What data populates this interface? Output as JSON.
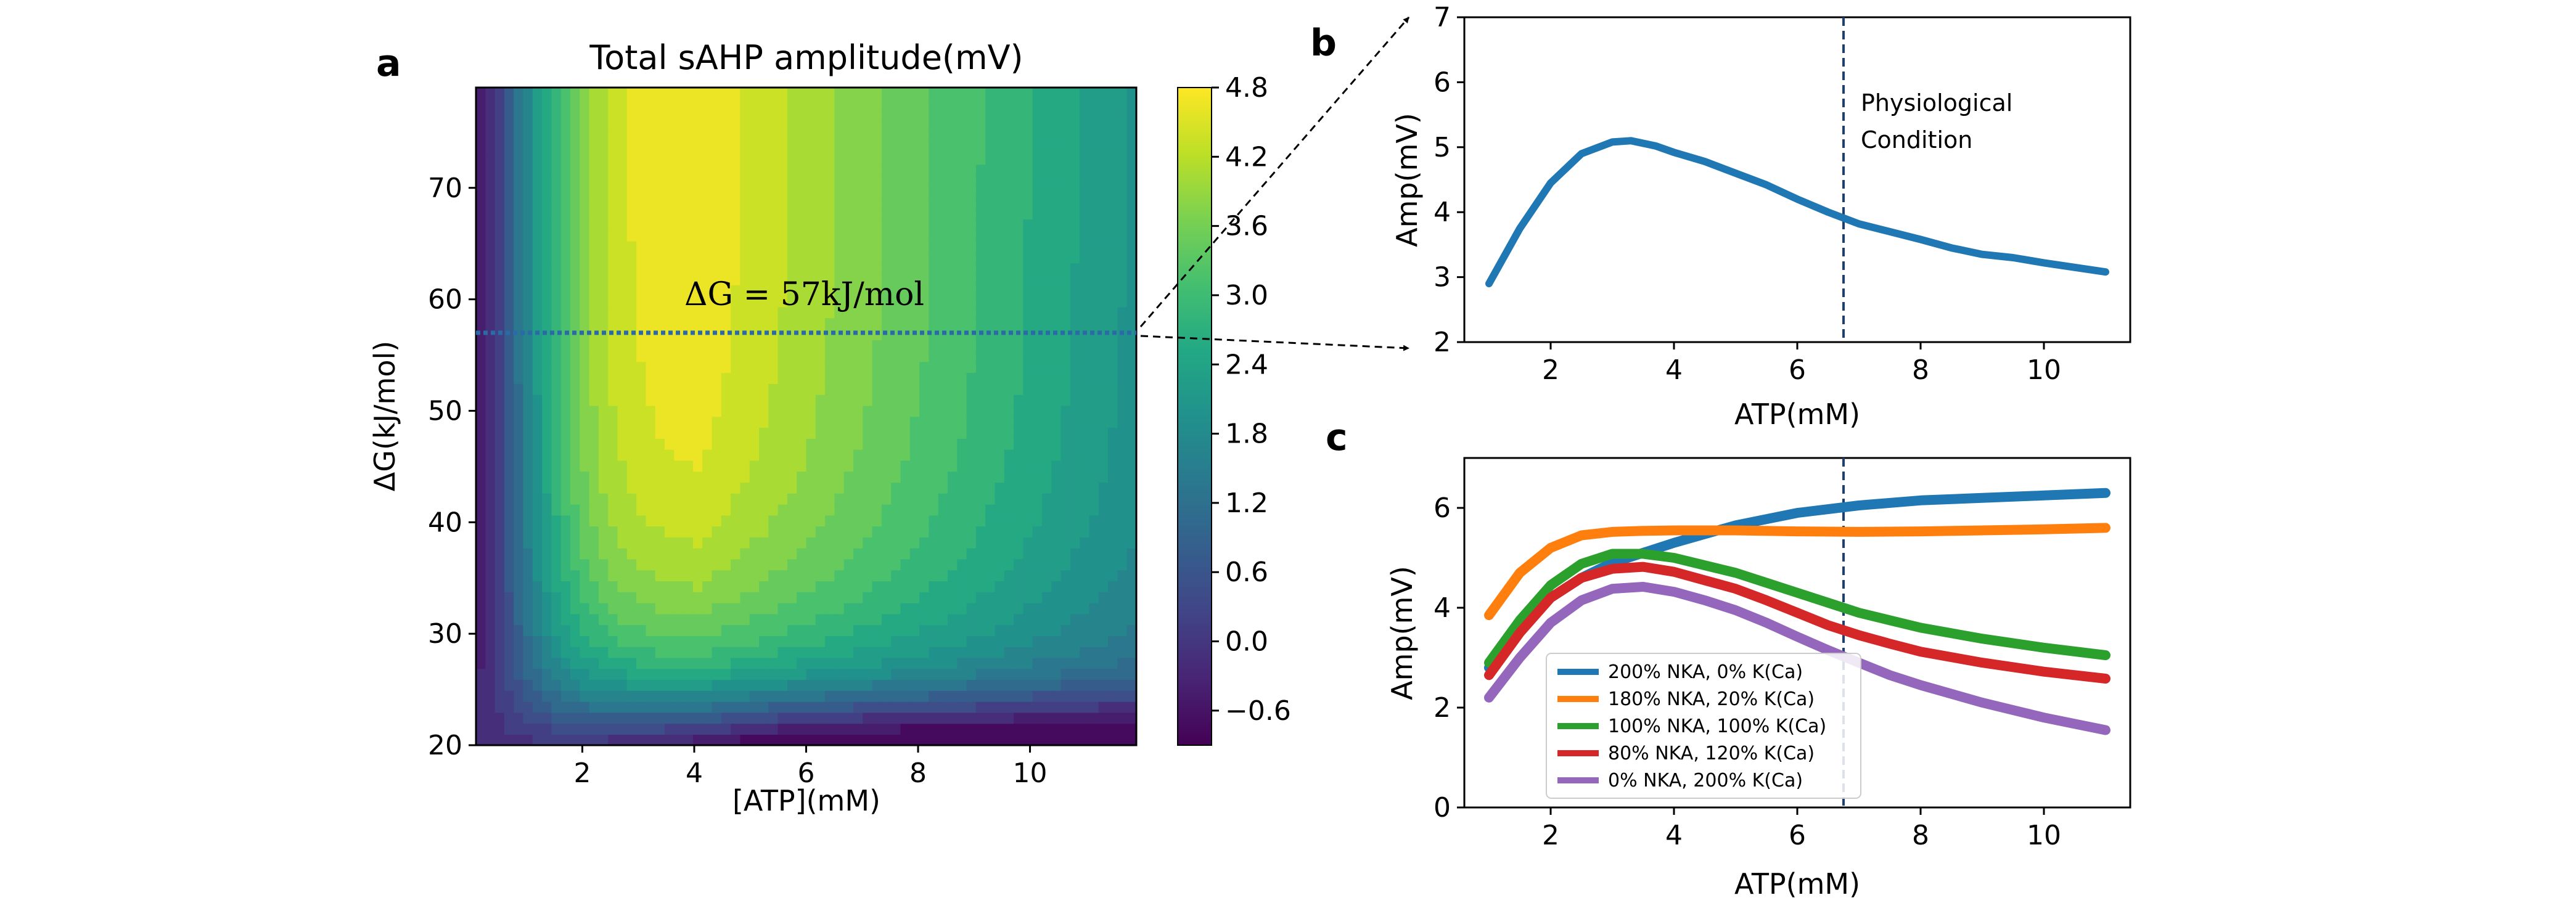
{
  "panel_labels": {
    "a": "a",
    "b": "b",
    "c": "c"
  },
  "colors": {
    "series": [
      "#1f77b4",
      "#ff7f0e",
      "#2ca02c",
      "#d62728",
      "#9467bd"
    ],
    "viridis": [
      "#440154",
      "#482475",
      "#414487",
      "#355f8d",
      "#2a788e",
      "#21918c",
      "#22a884",
      "#44bf70",
      "#7ad151",
      "#bddf26",
      "#fde725"
    ]
  },
  "chart_data": [
    {
      "id": "a",
      "type": "heatmap",
      "title": "Total sAHP amplitude(mV)",
      "xlabel": "[ATP](mM)",
      "ylabel": "ΔG(kJ/mol)",
      "xlim": [
        0.1,
        11.9
      ],
      "ylim": [
        20,
        79
      ],
      "xticks": [
        2,
        4,
        6,
        8,
        10
      ],
      "xtick_labels": [
        "2",
        "4",
        "6",
        "8",
        "10"
      ],
      "yticks": [
        20,
        30,
        40,
        50,
        60,
        70
      ],
      "ytick_labels": [
        "20",
        "30",
        "40",
        "50",
        "60",
        "70"
      ],
      "colorbar": {
        "range": [
          -0.9,
          4.8
        ],
        "ticks": [
          4.8,
          4.2,
          3.6,
          3.0,
          2.4,
          1.8,
          1.2,
          0.6,
          0.0,
          -0.6
        ],
        "tick_labels": [
          "4.8",
          "4.2",
          "3.6",
          "3.0",
          "2.4",
          "1.8",
          "1.2",
          "0.6",
          "0.0",
          "−0.6"
        ]
      },
      "annotation": {
        "text": "ΔG = 57kJ/mol",
        "y": 57
      },
      "guide_line": {
        "y": 57,
        "style": "dotted"
      }
    },
    {
      "id": "b",
      "type": "line",
      "xlabel": "ATP(mM)",
      "ylabel": "Amp(mV)",
      "xlim": [
        0.6,
        11.4
      ],
      "ylim": [
        2,
        7
      ],
      "xticks": [
        2,
        4,
        6,
        8,
        10
      ],
      "xtick_labels": [
        "2",
        "4",
        "6",
        "8",
        "10"
      ],
      "yticks": [
        2,
        3,
        4,
        5,
        6,
        7
      ],
      "ytick_labels": [
        "2",
        "3",
        "4",
        "5",
        "6",
        "7"
      ],
      "vline": {
        "x": 6.75,
        "label_lines": [
          "Physiological",
          "Condition"
        ]
      },
      "series": [
        {
          "x": [
            1.0,
            1.5,
            2.0,
            2.5,
            3.0,
            3.3,
            3.7,
            4.0,
            4.5,
            5.0,
            5.5,
            6.0,
            6.5,
            7.0,
            7.5,
            8.0,
            8.5,
            9.0,
            9.5,
            10.0,
            10.5,
            11.0
          ],
          "values": [
            2.9,
            3.75,
            4.45,
            4.9,
            5.08,
            5.1,
            5.02,
            4.92,
            4.78,
            4.6,
            4.42,
            4.2,
            4.0,
            3.82,
            3.7,
            3.58,
            3.45,
            3.35,
            3.3,
            3.22,
            3.15,
            3.08
          ]
        }
      ]
    },
    {
      "id": "c",
      "type": "line",
      "xlabel": "ATP(mM)",
      "ylabel": "Amp(mV)",
      "xlim": [
        0.6,
        11.4
      ],
      "ylim": [
        0,
        7
      ],
      "xticks": [
        2,
        4,
        6,
        8,
        10
      ],
      "xtick_labels": [
        "2",
        "4",
        "6",
        "8",
        "10"
      ],
      "yticks": [
        0,
        2,
        4,
        6
      ],
      "ytick_labels": [
        "0",
        "2",
        "4",
        "6"
      ],
      "vline": {
        "x": 6.75
      },
      "legend": "lower-left",
      "series": [
        {
          "name": "200% NKA, 0% K(Ca)",
          "x": [
            1.0,
            1.5,
            2.0,
            2.5,
            3.0,
            3.5,
            4.0,
            5.0,
            6.0,
            7.0,
            8.0,
            9.0,
            10.0,
            11.0
          ],
          "values": [
            2.8,
            3.6,
            4.2,
            4.6,
            4.9,
            5.1,
            5.3,
            5.65,
            5.9,
            6.05,
            6.15,
            6.2,
            6.25,
            6.3
          ]
        },
        {
          "name": "180% NKA, 20% K(Ca)",
          "x": [
            1.0,
            1.5,
            2.0,
            2.5,
            3.0,
            3.5,
            4.0,
            5.0,
            6.0,
            7.0,
            8.0,
            9.0,
            10.0,
            11.0
          ],
          "values": [
            3.85,
            4.7,
            5.2,
            5.45,
            5.52,
            5.54,
            5.55,
            5.55,
            5.53,
            5.52,
            5.53,
            5.55,
            5.57,
            5.6
          ]
        },
        {
          "name": "100% NKA, 100% K(Ca)",
          "x": [
            1.0,
            1.5,
            2.0,
            2.5,
            3.0,
            3.5,
            4.0,
            4.5,
            5.0,
            5.5,
            6.0,
            6.5,
            7.0,
            7.5,
            8.0,
            9.0,
            10.0,
            11.0
          ],
          "values": [
            2.9,
            3.75,
            4.45,
            4.88,
            5.08,
            5.08,
            5.0,
            4.85,
            4.7,
            4.5,
            4.3,
            4.1,
            3.9,
            3.75,
            3.6,
            3.38,
            3.2,
            3.05
          ]
        },
        {
          "name": "80% NKA, 120% K(Ca)",
          "x": [
            1.0,
            1.5,
            2.0,
            2.5,
            3.0,
            3.5,
            4.0,
            4.5,
            5.0,
            5.5,
            6.0,
            6.5,
            7.0,
            7.5,
            8.0,
            9.0,
            10.0,
            11.0
          ],
          "values": [
            2.65,
            3.5,
            4.2,
            4.6,
            4.78,
            4.82,
            4.72,
            4.55,
            4.38,
            4.15,
            3.9,
            3.65,
            3.45,
            3.28,
            3.12,
            2.9,
            2.72,
            2.58
          ]
        },
        {
          "name": "0% NKA, 200% K(Ca)",
          "x": [
            1.0,
            1.5,
            2.0,
            2.5,
            3.0,
            3.5,
            4.0,
            4.5,
            5.0,
            5.5,
            6.0,
            6.5,
            7.0,
            7.5,
            8.0,
            9.0,
            10.0,
            11.0
          ],
          "values": [
            2.2,
            3.0,
            3.7,
            4.15,
            4.38,
            4.42,
            4.32,
            4.15,
            3.95,
            3.7,
            3.42,
            3.15,
            2.9,
            2.65,
            2.45,
            2.1,
            1.8,
            1.55
          ]
        }
      ]
    }
  ]
}
